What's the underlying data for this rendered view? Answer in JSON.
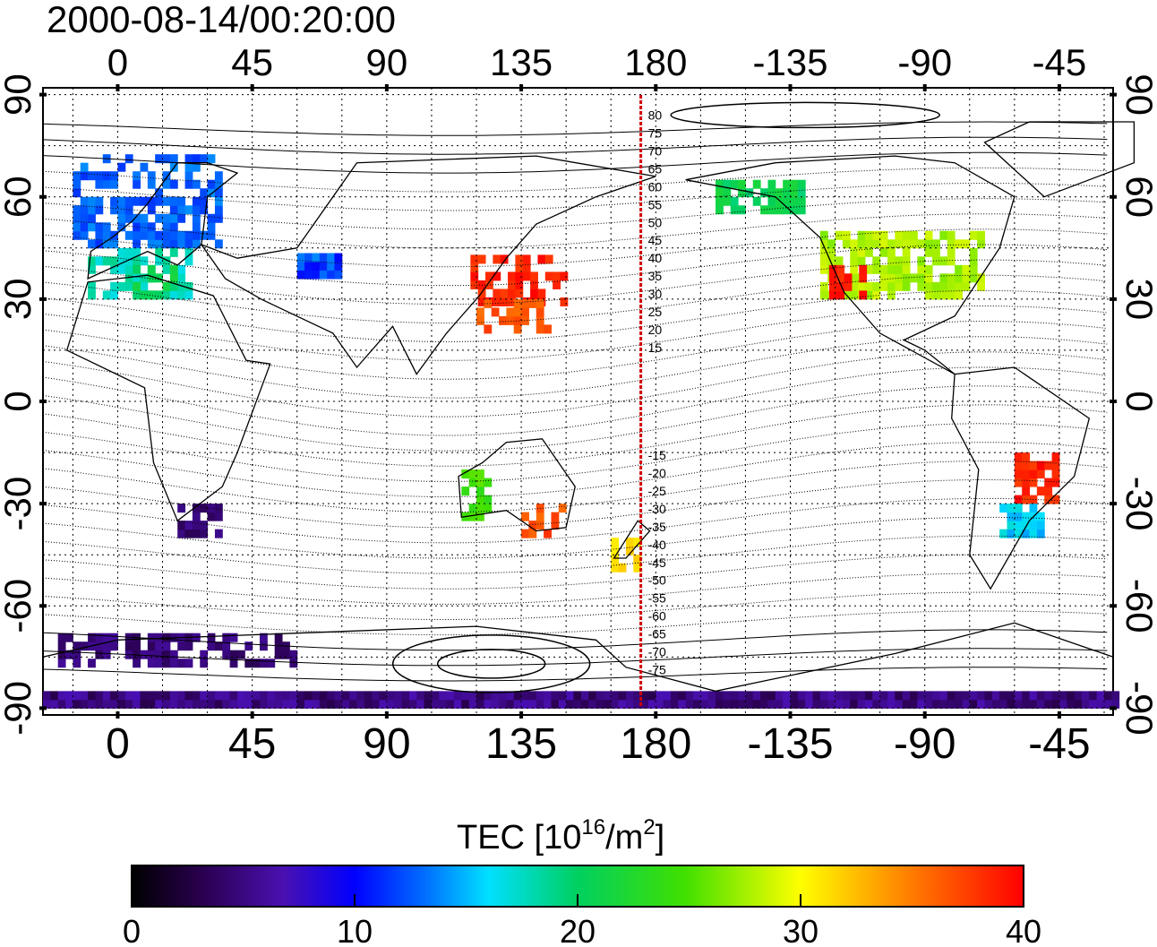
{
  "title": "2000-08-14/00:20:00",
  "map": {
    "lon_ticks_top": [
      "0",
      "45",
      "90",
      "135",
      "180",
      "-135",
      "-90",
      "-45"
    ],
    "lon_ticks_bottom": [
      "0",
      "45",
      "90",
      "135",
      "180",
      "-135",
      "-90",
      "-45"
    ],
    "lat_ticks_left": [
      "90",
      "60",
      "30",
      "0",
      "-30",
      "-60",
      "-90"
    ],
    "lat_ticks_right": [
      "90",
      "60",
      "30",
      "0",
      "-30",
      "-60",
      "-90"
    ],
    "lon_tick_values": [
      0,
      45,
      90,
      135,
      180,
      225,
      270,
      315
    ],
    "lat_tick_values": [
      90,
      60,
      30,
      0,
      -30,
      -60,
      -90
    ],
    "lon_range": [
      -25,
      333
    ],
    "lat_range": [
      -92,
      92
    ],
    "grid": "dotted every 15 degrees",
    "meridian_marker_lon": 175,
    "contour_labels": [
      "80",
      "75",
      "70",
      "65",
      "60",
      "55",
      "50",
      "45",
      "40",
      "35",
      "30",
      "25",
      "20",
      "15",
      "-15",
      "-20",
      "-25",
      "-30",
      "-35",
      "-40",
      "-45",
      "-50",
      "-55",
      "-60",
      "-65",
      "-70",
      "-75"
    ]
  },
  "colorbar": {
    "label_main": "TEC  [10",
    "label_sup1": "16",
    "label_mid": "/m",
    "label_sup2": "2",
    "label_end": "]",
    "min": 0,
    "max": 40,
    "ticks": [
      "0",
      "10",
      "20",
      "30",
      "40"
    ],
    "tick_values": [
      0,
      10,
      20,
      30,
      40
    ]
  },
  "chart_data": {
    "type": "heatmap",
    "title": "2000-08-14/00:20:00",
    "value_label": "TEC [10^16/m^2]",
    "value_range": [
      0,
      40
    ],
    "x_range_lon": [
      -25,
      333
    ],
    "y_range_lat": [
      -92,
      92
    ],
    "regions": [
      {
        "lon": [
          -15,
          35
        ],
        "lat": [
          45,
          72
        ],
        "tec": 12
      },
      {
        "lon": [
          -10,
          25
        ],
        "lat": [
          30,
          45
        ],
        "tec": 17
      },
      {
        "lon": [
          5,
          20
        ],
        "lat": [
          30,
          38
        ],
        "tec": 20
      },
      {
        "lon": [
          60,
          75
        ],
        "lat": [
          36,
          42
        ],
        "tec": 12
      },
      {
        "lon": [
          118,
          150
        ],
        "lat": [
          28,
          42
        ],
        "tec": 38
      },
      {
        "lon": [
          120,
          145
        ],
        "lat": [
          20,
          28
        ],
        "tec": 36
      },
      {
        "lon": [
          115,
          125
        ],
        "lat": [
          -35,
          -20
        ],
        "tec": 24
      },
      {
        "lon": [
          135,
          150
        ],
        "lat": [
          -40,
          -30
        ],
        "tec": 36
      },
      {
        "lon": [
          165,
          175
        ],
        "lat": [
          -50,
          -40
        ],
        "tec": 30
      },
      {
        "lon": [
          235,
          290
        ],
        "lat": [
          30,
          48
        ],
        "tec": 27
      },
      {
        "lon": [
          238,
          250
        ],
        "lat": [
          30,
          40
        ],
        "tec": 38
      },
      {
        "lon": [
          200,
          230
        ],
        "lat": [
          55,
          65
        ],
        "tec": 20
      },
      {
        "lon": [
          300,
          315
        ],
        "lat": [
          -30,
          -15
        ],
        "tec": 38
      },
      {
        "lon": [
          295,
          310
        ],
        "lat": [
          -40,
          -30
        ],
        "tec": 15
      },
      {
        "lon": [
          20,
          35
        ],
        "lat": [
          -40,
          -30
        ],
        "tec": 4
      },
      {
        "lon": [
          -20,
          60
        ],
        "lat": [
          -78,
          -70
        ],
        "tec": 4
      },
      {
        "lon": [
          -25,
          333
        ],
        "lat": [
          -90,
          -86
        ],
        "tec": 5
      }
    ]
  }
}
